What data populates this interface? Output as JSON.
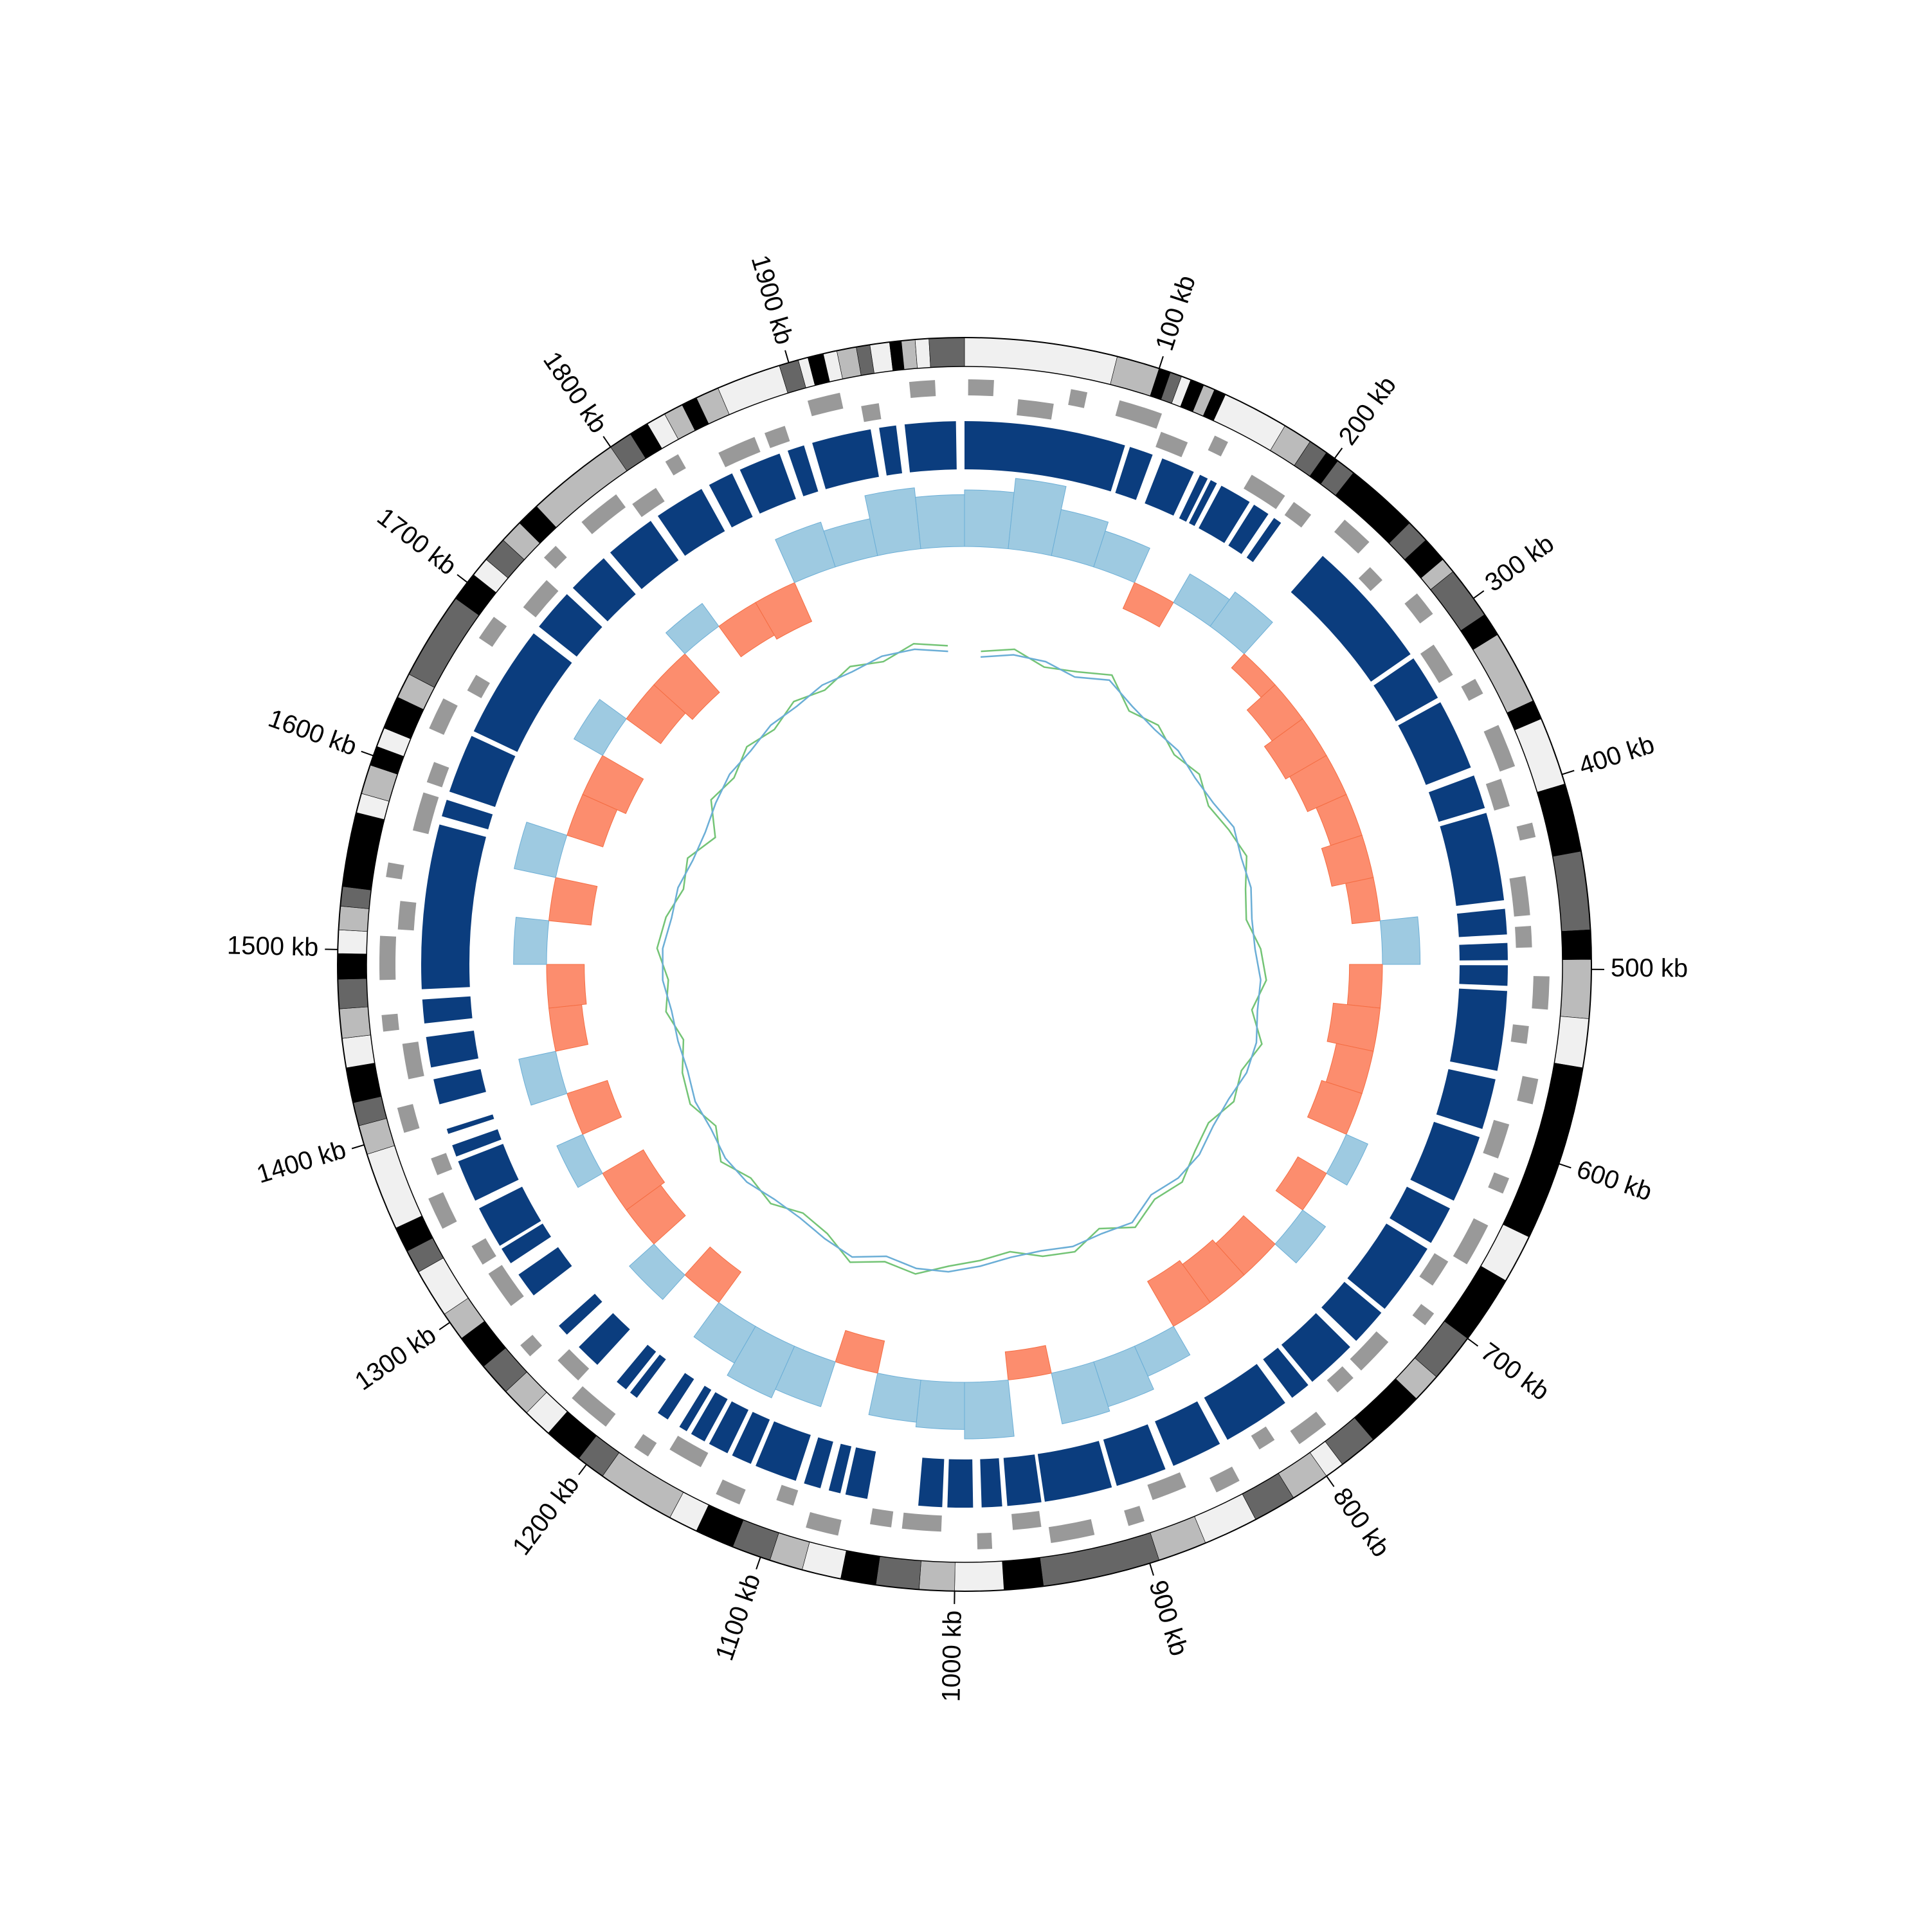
{
  "chart_data": {
    "type": "circular-genome",
    "xlim": [
      0,
      1990
    ],
    "xticks": [
      {
        "value": 100,
        "label": "100 kb"
      },
      {
        "value": 200,
        "label": "200 kb"
      },
      {
        "value": 300,
        "label": "300 kb"
      },
      {
        "value": 400,
        "label": "400 kb"
      },
      {
        "value": 500,
        "label": "500 kb"
      },
      {
        "value": 600,
        "label": "600 kb"
      },
      {
        "value": 700,
        "label": "700 kb"
      },
      {
        "value": 800,
        "label": "800 kb"
      },
      {
        "value": 900,
        "label": "900 kb"
      },
      {
        "value": 1000,
        "label": "1000 kb"
      },
      {
        "value": 1100,
        "label": "1100 kb"
      },
      {
        "value": 1200,
        "label": "1200 kb"
      },
      {
        "value": 1300,
        "label": "1300 kb"
      },
      {
        "value": 1400,
        "label": "1400 kb"
      },
      {
        "value": 1500,
        "label": "1500 kb"
      },
      {
        "value": 1600,
        "label": "1600 kb"
      },
      {
        "value": 1700,
        "label": "1700 kb"
      },
      {
        "value": 1800,
        "label": "1800 kb"
      },
      {
        "value": 1900,
        "label": "1900 kb"
      }
    ],
    "bands": {
      "starts": [
        0,
        78,
        100,
        106,
        112,
        117,
        124,
        130,
        136,
        170,
        185,
        195,
        202,
        212,
        250,
        262,
        275,
        283,
        310,
        322,
        360,
        370,
        405,
        440,
        480,
        495,
        525,
        550,
        640,
        665,
        700,
        725,
        740,
        770,
        790,
        800,
        820,
        842,
        870,
        895,
        955,
        975,
        1000,
        1018,
        1040,
        1058,
        1078,
        1095,
        1115,
        1135,
        1150,
        1190,
        1205,
        1225,
        1240,
        1255,
        1272,
        1290,
        1305,
        1330,
        1342,
        1355,
        1395,
        1410,
        1422,
        1440,
        1455,
        1470,
        1485,
        1498,
        1510,
        1522,
        1532,
        1570,
        1580,
        1595,
        1605,
        1615,
        1632,
        1645,
        1690,
        1705,
        1715,
        1728,
        1740,
        1752,
        1800,
        1812,
        1822,
        1832,
        1842,
        1850,
        1862,
        1895,
        1905,
        1910,
        1918,
        1925,
        1935,
        1942,
        1952,
        1958,
        1965,
        1972
      ],
      "colors": [
        "#f0f0f0",
        "#bbbbbb",
        "#000000",
        "#666666",
        "#f0f0f0",
        "#000000",
        "#bbbbbb",
        "#000000",
        "#f0f0f0",
        "#bbbbbb",
        "#666666",
        "#000000",
        "#666666",
        "#000000",
        "#666666",
        "#000000",
        "#bbbbbb",
        "#666666",
        "#000000",
        "#bbbbbb",
        "#000000",
        "#f0f0f0",
        "#000000",
        "#666666",
        "#000000",
        "#bbbbbb",
        "#f0f0f0",
        "#000000",
        "#f0f0f0",
        "#000000",
        "#666666",
        "#bbbbbb",
        "#000000",
        "#666666",
        "#f0f0f0",
        "#bbbbbb",
        "#666666",
        "#f0f0f0",
        "#bbbbbb",
        "#666666",
        "#000000",
        "#f0f0f0",
        "#bbbbbb",
        "#666666",
        "#000000",
        "#f0f0f0",
        "#bbbbbb",
        "#666666",
        "#000000",
        "#f0f0f0",
        "#bbbbbb",
        "#666666",
        "#000000",
        "#f0f0f0",
        "#bbbbbb",
        "#666666",
        "#000000",
        "#bbbbbb",
        "#f0f0f0",
        "#666666",
        "#000000",
        "#f0f0f0",
        "#bbbbbb",
        "#666666",
        "#000000",
        "#f0f0f0",
        "#bbbbbb",
        "#666666",
        "#000000",
        "#f0f0f0",
        "#bbbbbb",
        "#666666",
        "#000000",
        "#f0f0f0",
        "#bbbbbb",
        "#000000",
        "#f0f0f0",
        "#000000",
        "#bbbbbb",
        "#666666",
        "#000000",
        "#f0f0f0",
        "#666666",
        "#bbbbbb",
        "#000000",
        "#bbbbbb",
        "#666666",
        "#000000",
        "#f0f0f0",
        "#bbbbbb",
        "#000000",
        "#bbbbbb",
        "#f0f0f0",
        "#666666",
        "#f0f0f0",
        "#000000",
        "#f0f0f0",
        "#bbbbbb",
        "#666666",
        "#f0f0f0",
        "#000000",
        "#bbbbbb",
        "#f0f0f0",
        "#666666"
      ]
    },
    "genes": {
      "color": "#999999",
      "starts": [
        2,
        30,
        58,
        85,
        112,
        140,
        168,
        196,
        224,
        252,
        280,
        308,
        336,
        364,
        392,
        420,
        448,
        476,
        504,
        532,
        560,
        588,
        616,
        644,
        672,
        700,
        728,
        756,
        784,
        812,
        840,
        868,
        896,
        924,
        952,
        980,
        1008,
        1036,
        1064,
        1092,
        1120,
        1148,
        1176,
        1204,
        1232,
        1260,
        1288,
        1316,
        1344,
        1372,
        1400,
        1428,
        1456,
        1484,
        1512,
        1540,
        1568,
        1596,
        1624,
        1652,
        1680,
        1708,
        1736,
        1764,
        1792,
        1820,
        1848,
        1876,
        1904,
        1932,
        1960
      ],
      "ends": [
        16,
        50,
        67,
        109,
        128,
        148,
        190,
        208,
        242,
        262,
        294,
        328,
        345,
        388,
        408,
        428,
        470,
        488,
        522,
        542,
        574,
        608,
        625,
        668,
        688,
        708,
        750,
        768,
        802,
        822,
        854,
        888,
        905,
        948,
        968,
        988,
        1030,
        1048,
        1082,
        1102,
        1134,
        1168,
        1185,
        1228,
        1248,
        1268,
        1310,
        1328,
        1362,
        1382,
        1414,
        1448,
        1465,
        1508,
        1528,
        1548,
        1590,
        1608,
        1642,
        1662,
        1694,
        1728,
        1745,
        1788,
        1808,
        1828,
        1870,
        1888,
        1922,
        1942,
        1974
      ],
      "strand": [
        1,
        -1,
        1,
        1,
        -1,
        1,
        -1,
        -1,
        1,
        -1,
        1,
        -1,
        1,
        1,
        -1,
        1,
        -1,
        -1,
        1,
        -1,
        1,
        -1,
        1,
        1,
        -1,
        1,
        -1,
        -1,
        1,
        -1,
        1,
        -1,
        1,
        1,
        -1,
        1,
        -1,
        -1,
        1,
        -1,
        1,
        -1,
        1,
        1,
        -1,
        1,
        -1,
        -1,
        1,
        -1,
        1,
        -1,
        1,
        1,
        -1,
        1,
        -1,
        -1,
        1,
        -1,
        1,
        -1,
        1,
        1,
        -1,
        1,
        -1,
        -1,
        1,
        -1,
        1
      ]
    },
    "blocks": {
      "color": "#0b3d7e",
      "starts": [
        0,
        98,
        118,
        142,
        149,
        156,
        178,
        192,
        228,
        308,
        338,
        385,
        408,
        465,
        485,
        498,
        513,
        565,
        600,
        645,
        672,
        718,
        745,
        778,
        795,
        840,
        875,
        908,
        950,
        973,
        990,
        1008,
        1052,
        1068,
        1080,
        1095,
        1123,
        1138,
        1153,
        1165,
        1178,
        1200,
        1208,
        1230,
        1255,
        1285,
        1308,
        1320,
        1350,
        1378,
        1392,
        1410,
        1432,
        1458,
        1478,
        1580,
        1595,
        1633,
        1705,
        1735,
        1765,
        1800,
        1835,
        1855,
        1885,
        1900,
        1940,
        1955
      ],
      "ends": [
        95,
        112,
        138,
        147,
        153,
        175,
        188,
        197,
        305,
        335,
        380,
        405,
        460,
        480,
        495,
        510,
        560,
        595,
        640,
        668,
        715,
        740,
        775,
        790,
        835,
        870,
        905,
        948,
        970,
        985,
        1005,
        1022,
        1065,
        1075,
        1090,
        1120,
        1135,
        1150,
        1162,
        1170,
        1185,
        1205,
        1215,
        1245,
        1262,
        1300,
        1318,
        1345,
        1375,
        1385,
        1395,
        1425,
        1450,
        1472,
        1575,
        1590,
        1630,
        1700,
        1730,
        1760,
        1795,
        1830,
        1850,
        1880,
        1895,
        1935,
        1950,
        1985
      ]
    },
    "gc_skew": {
      "ylim": [
        -0.15,
        0.15
      ],
      "positive_color": "#9ecae1",
      "negative_color": "#fc8d6e",
      "values": [
        0.12,
        0.15,
        0.1,
        0.08,
        -0.06,
        0.07,
        0.09,
        -0.04,
        -0.08,
        -0.1,
        -0.09,
        -0.07,
        -0.09,
        -0.06,
        0.08,
        -0.07,
        -0.1,
        -0.08,
        -0.09,
        0.05,
        -0.07,
        0.06,
        -0.09,
        -0.1,
        -0.11,
        0.07,
        0.1,
        0.11,
        -0.06,
        0.12,
        0.1,
        0.09,
        -0.07,
        0.1,
        0.12,
        0.09,
        -0.08,
        0.07,
        -0.09,
        -0.1,
        0.06,
        -0.09,
        0.08,
        -0.07,
        -0.08,
        0.07,
        -0.09,
        0.09,
        -0.08,
        -0.1,
        0.07,
        -0.09,
        -0.11,
        0.06,
        -0.08,
        -0.09,
        0.1,
        0.08,
        0.13,
        0.11
      ]
    },
    "gc_content": {
      "ylim": [
        0.3,
        0.46
      ],
      "series": [
        {
          "color": "#74c476",
          "values": [
            0.4,
            0.41,
            0.39,
            0.4,
            0.42,
            0.38,
            0.39,
            0.37,
            0.38,
            0.36,
            0.37,
            0.38,
            0.36,
            0.35,
            0.37,
            0.38,
            0.36,
            0.39,
            0.37,
            0.38,
            0.36,
            0.37,
            0.39,
            0.38,
            0.4,
            0.37,
            0.39,
            0.38,
            0.36,
            0.37,
            0.38,
            0.4,
            0.39,
            0.41,
            0.38,
            0.37,
            0.39,
            0.38,
            0.4,
            0.37,
            0.39,
            0.38,
            0.36,
            0.38,
            0.37,
            0.39,
            0.38,
            0.36,
            0.37,
            0.34,
            0.38,
            0.37,
            0.39,
            0.38,
            0.4,
            0.39,
            0.41,
            0.4,
            0.42,
            0.41
          ]
        },
        {
          "color": "#6baed6",
          "values": [
            0.39,
            0.4,
            0.4,
            0.39,
            0.41,
            0.39,
            0.38,
            0.38,
            0.37,
            0.37,
            0.38,
            0.37,
            0.37,
            0.36,
            0.36,
            0.37,
            0.37,
            0.38,
            0.38,
            0.37,
            0.37,
            0.38,
            0.38,
            0.37,
            0.39,
            0.38,
            0.38,
            0.37,
            0.37,
            0.38,
            0.39,
            0.39,
            0.38,
            0.4,
            0.39,
            0.38,
            0.38,
            0.39,
            0.39,
            0.38,
            0.38,
            0.37,
            0.37,
            0.37,
            0.38,
            0.38,
            0.37,
            0.37,
            0.36,
            0.36,
            0.37,
            0.38,
            0.38,
            0.39,
            0.39,
            0.4,
            0.4,
            0.41,
            0.41,
            0.4
          ]
        }
      ]
    }
  }
}
